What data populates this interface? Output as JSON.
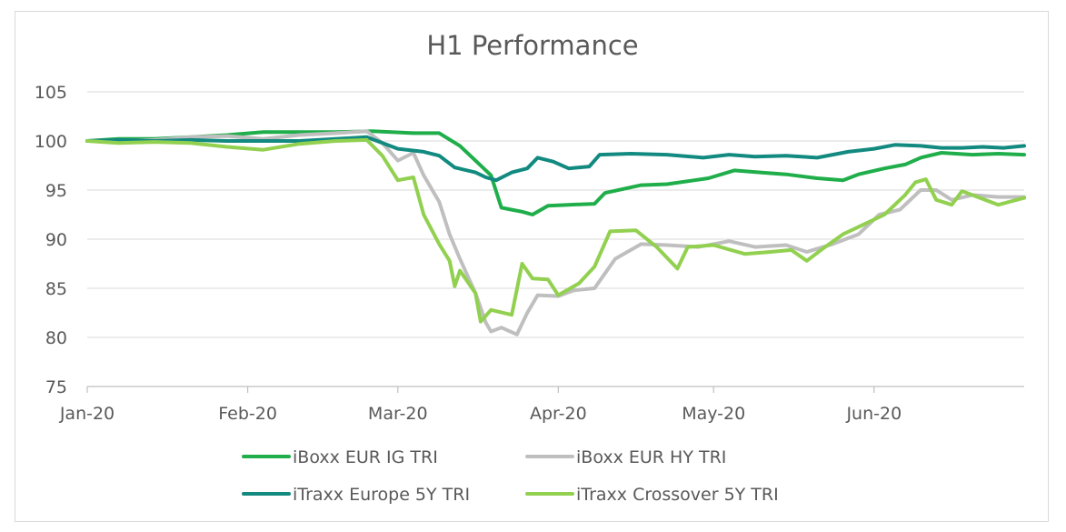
{
  "chart_data": {
    "type": "line",
    "title": "H1 Performance",
    "xlabel": "",
    "ylabel": "",
    "ylim": [
      75,
      105
    ],
    "yticks": [
      75,
      80,
      85,
      90,
      95,
      100,
      105
    ],
    "xticks": [
      {
        "date": "2020-01-01",
        "label": "Jan-20"
      },
      {
        "date": "2020-02-01",
        "label": "Feb-20"
      },
      {
        "date": "2020-03-01",
        "label": "Mar-20"
      },
      {
        "date": "2020-04-01",
        "label": "Apr-20"
      },
      {
        "date": "2020-05-01",
        "label": "May-20"
      },
      {
        "date": "2020-06-01",
        "label": "Jun-20"
      }
    ],
    "xlim": [
      "2020-01-01",
      "2020-06-30"
    ],
    "grid": true,
    "legend_placement": "bottom",
    "series": [
      {
        "name": "iBoxx EUR IG TRI",
        "color": "#1fae4a",
        "points": [
          [
            "2020-01-01",
            100.0
          ],
          [
            "2020-01-07",
            100.2
          ],
          [
            "2020-01-14",
            100.2
          ],
          [
            "2020-01-21",
            100.4
          ],
          [
            "2020-01-28",
            100.6
          ],
          [
            "2020-02-04",
            100.9
          ],
          [
            "2020-02-11",
            100.9
          ],
          [
            "2020-02-18",
            100.9
          ],
          [
            "2020-02-25",
            101.0
          ],
          [
            "2020-03-04",
            100.8
          ],
          [
            "2020-03-09",
            100.8
          ],
          [
            "2020-03-13",
            99.5
          ],
          [
            "2020-03-16",
            98.0
          ],
          [
            "2020-03-19",
            96.5
          ],
          [
            "2020-03-21",
            93.2
          ],
          [
            "2020-03-23",
            93.0
          ],
          [
            "2020-03-25",
            92.8
          ],
          [
            "2020-03-27",
            92.5
          ],
          [
            "2020-03-30",
            93.4
          ],
          [
            "2020-04-03",
            93.5
          ],
          [
            "2020-04-08",
            93.6
          ],
          [
            "2020-04-10",
            94.7
          ],
          [
            "2020-04-17",
            95.5
          ],
          [
            "2020-04-22",
            95.6
          ],
          [
            "2020-04-30",
            96.2
          ],
          [
            "2020-05-05",
            97.0
          ],
          [
            "2020-05-10",
            96.8
          ],
          [
            "2020-05-15",
            96.6
          ],
          [
            "2020-05-21",
            96.2
          ],
          [
            "2020-05-26",
            96.0
          ],
          [
            "2020-05-29",
            96.6
          ],
          [
            "2020-06-03",
            97.2
          ],
          [
            "2020-06-07",
            97.6
          ],
          [
            "2020-06-10",
            98.3
          ],
          [
            "2020-06-14",
            98.8
          ],
          [
            "2020-06-20",
            98.6
          ],
          [
            "2020-06-25",
            98.7
          ],
          [
            "2020-06-30",
            98.6
          ]
        ]
      },
      {
        "name": "iBoxx EUR HY TRI",
        "color": "#bfbfbf",
        "points": [
          [
            "2020-01-01",
            100.0
          ],
          [
            "2020-01-07",
            100.0
          ],
          [
            "2020-01-14",
            100.1
          ],
          [
            "2020-01-21",
            100.4
          ],
          [
            "2020-01-28",
            100.5
          ],
          [
            "2020-02-04",
            100.2
          ],
          [
            "2020-02-11",
            100.6
          ],
          [
            "2020-02-18",
            100.8
          ],
          [
            "2020-02-24",
            101.0
          ],
          [
            "2020-02-27",
            99.8
          ],
          [
            "2020-03-01",
            98.0
          ],
          [
            "2020-03-04",
            98.8
          ],
          [
            "2020-03-06",
            96.5
          ],
          [
            "2020-03-09",
            93.8
          ],
          [
            "2020-03-11",
            90.5
          ],
          [
            "2020-03-13",
            88.0
          ],
          [
            "2020-03-16",
            84.5
          ],
          [
            "2020-03-18",
            81.5
          ],
          [
            "2020-03-19",
            80.6
          ],
          [
            "2020-03-21",
            81.0
          ],
          [
            "2020-03-24",
            80.3
          ],
          [
            "2020-03-26",
            82.5
          ],
          [
            "2020-03-28",
            84.3
          ],
          [
            "2020-04-01",
            84.2
          ],
          [
            "2020-04-04",
            84.8
          ],
          [
            "2020-04-08",
            85.0
          ],
          [
            "2020-04-10",
            86.5
          ],
          [
            "2020-04-12",
            88.0
          ],
          [
            "2020-04-17",
            89.5
          ],
          [
            "2020-04-22",
            89.4
          ],
          [
            "2020-04-28",
            89.2
          ],
          [
            "2020-05-04",
            89.8
          ],
          [
            "2020-05-09",
            89.2
          ],
          [
            "2020-05-15",
            89.4
          ],
          [
            "2020-05-19",
            88.7
          ],
          [
            "2020-05-24",
            89.5
          ],
          [
            "2020-05-29",
            90.5
          ],
          [
            "2020-06-02",
            92.5
          ],
          [
            "2020-06-06",
            93.0
          ],
          [
            "2020-06-10",
            95.0
          ],
          [
            "2020-06-13",
            95.0
          ],
          [
            "2020-06-16",
            94.0
          ],
          [
            "2020-06-20",
            94.5
          ],
          [
            "2020-06-25",
            94.3
          ],
          [
            "2020-06-30",
            94.3
          ]
        ]
      },
      {
        "name": "iTraxx Europe 5Y TRI",
        "color": "#128a80",
        "points": [
          [
            "2020-01-01",
            100.0
          ],
          [
            "2020-01-07",
            100.1
          ],
          [
            "2020-01-14",
            100.0
          ],
          [
            "2020-01-21",
            100.1
          ],
          [
            "2020-01-28",
            100.0
          ],
          [
            "2020-02-04",
            100.0
          ],
          [
            "2020-02-11",
            100.0
          ],
          [
            "2020-02-18",
            100.2
          ],
          [
            "2020-02-24",
            100.4
          ],
          [
            "2020-03-01",
            99.2
          ],
          [
            "2020-03-06",
            98.9
          ],
          [
            "2020-03-09",
            98.5
          ],
          [
            "2020-03-12",
            97.3
          ],
          [
            "2020-03-16",
            96.8
          ],
          [
            "2020-03-18",
            96.3
          ],
          [
            "2020-03-20",
            96.0
          ],
          [
            "2020-03-23",
            96.8
          ],
          [
            "2020-03-26",
            97.2
          ],
          [
            "2020-03-28",
            98.3
          ],
          [
            "2020-03-31",
            97.9
          ],
          [
            "2020-04-03",
            97.2
          ],
          [
            "2020-04-07",
            97.4
          ],
          [
            "2020-04-09",
            98.6
          ],
          [
            "2020-04-15",
            98.7
          ],
          [
            "2020-04-22",
            98.6
          ],
          [
            "2020-04-29",
            98.3
          ],
          [
            "2020-05-04",
            98.6
          ],
          [
            "2020-05-09",
            98.4
          ],
          [
            "2020-05-15",
            98.5
          ],
          [
            "2020-05-21",
            98.3
          ],
          [
            "2020-05-27",
            98.9
          ],
          [
            "2020-06-01",
            99.2
          ],
          [
            "2020-06-05",
            99.6
          ],
          [
            "2020-06-10",
            99.5
          ],
          [
            "2020-06-14",
            99.3
          ],
          [
            "2020-06-18",
            99.3
          ],
          [
            "2020-06-22",
            99.4
          ],
          [
            "2020-06-26",
            99.3
          ],
          [
            "2020-06-30",
            99.5
          ]
        ]
      },
      {
        "name": "iTraxx Crossover 5Y TRI",
        "color": "#92d050",
        "points": [
          [
            "2020-01-01",
            100.0
          ],
          [
            "2020-01-07",
            99.8
          ],
          [
            "2020-01-14",
            99.9
          ],
          [
            "2020-01-21",
            99.8
          ],
          [
            "2020-01-28",
            99.4
          ],
          [
            "2020-02-04",
            99.1
          ],
          [
            "2020-02-11",
            99.7
          ],
          [
            "2020-02-18",
            100.0
          ],
          [
            "2020-02-24",
            100.1
          ],
          [
            "2020-02-27",
            98.5
          ],
          [
            "2020-03-01",
            96.0
          ],
          [
            "2020-03-04",
            96.3
          ],
          [
            "2020-03-06",
            92.5
          ],
          [
            "2020-03-09",
            89.5
          ],
          [
            "2020-03-11",
            87.8
          ],
          [
            "2020-03-12",
            85.2
          ],
          [
            "2020-03-13",
            86.8
          ],
          [
            "2020-03-16",
            84.5
          ],
          [
            "2020-03-17",
            81.6
          ],
          [
            "2020-03-19",
            82.8
          ],
          [
            "2020-03-23",
            82.3
          ],
          [
            "2020-03-25",
            87.5
          ],
          [
            "2020-03-27",
            86.0
          ],
          [
            "2020-03-30",
            85.9
          ],
          [
            "2020-04-01",
            84.3
          ],
          [
            "2020-04-05",
            85.5
          ],
          [
            "2020-04-08",
            87.2
          ],
          [
            "2020-04-11",
            90.8
          ],
          [
            "2020-04-16",
            90.9
          ],
          [
            "2020-04-20",
            89.2
          ],
          [
            "2020-04-24",
            87.0
          ],
          [
            "2020-04-26",
            89.2
          ],
          [
            "2020-05-01",
            89.4
          ],
          [
            "2020-05-07",
            88.5
          ],
          [
            "2020-05-12",
            88.7
          ],
          [
            "2020-05-16",
            88.9
          ],
          [
            "2020-05-19",
            87.8
          ],
          [
            "2020-05-22",
            89.0
          ],
          [
            "2020-05-26",
            90.5
          ],
          [
            "2020-05-30",
            91.5
          ],
          [
            "2020-06-03",
            92.5
          ],
          [
            "2020-06-07",
            94.5
          ],
          [
            "2020-06-09",
            95.8
          ],
          [
            "2020-06-11",
            96.1
          ],
          [
            "2020-06-13",
            94.0
          ],
          [
            "2020-06-16",
            93.5
          ],
          [
            "2020-06-18",
            94.9
          ],
          [
            "2020-06-21",
            94.3
          ],
          [
            "2020-06-25",
            93.5
          ],
          [
            "2020-06-30",
            94.2
          ]
        ]
      }
    ]
  }
}
